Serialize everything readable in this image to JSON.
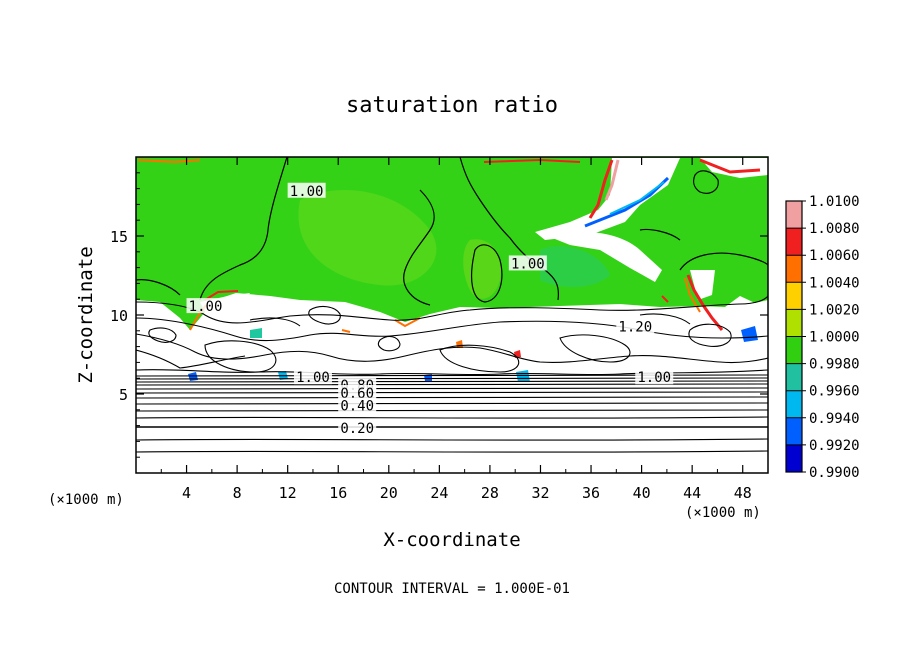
{
  "chart_data": {
    "type": "heatmap",
    "subtype": "filled contour plot",
    "title": "saturation ratio",
    "xlabel": "X-coordinate",
    "ylabel": "Z-coordinate",
    "x_unit_label": "(×1000 m)",
    "xlim": [
      0,
      50
    ],
    "ylim": [
      0,
      20
    ],
    "x_ticks": [
      4,
      8,
      12,
      16,
      20,
      24,
      28,
      32,
      36,
      40,
      44,
      48
    ],
    "y_ticks": [
      5,
      10,
      15
    ],
    "footer": "CONTOUR INTERVAL = 1.000E-01",
    "colorbar": {
      "labels": [
        "1.0100",
        "1.0080",
        "1.0060",
        "1.0040",
        "1.0020",
        "1.0000",
        "0.9980",
        "0.9960",
        "0.9940",
        "0.9920",
        "0.9900"
      ],
      "colors": [
        "#f0a0a0",
        "#f02020",
        "#ff7000",
        "#ffd000",
        "#b0e000",
        "#30d010",
        "#20c0a0",
        "#00b8f0",
        "#0060ff",
        "#0000d0",
        "#5a2090"
      ]
    },
    "contour_labels": [
      {
        "text": "1.00",
        "x": 13.5,
        "z": 17.8
      },
      {
        "text": "1.00",
        "x": 31.0,
        "z": 13.2
      },
      {
        "text": "1.00",
        "x": 5.5,
        "z": 10.5
      },
      {
        "text": "1.20",
        "x": 39.5,
        "z": 9.2
      },
      {
        "text": "1.00",
        "x": 41.0,
        "z": 6.0
      },
      {
        "text": "1.00",
        "x": 14.0,
        "z": 6.0
      },
      {
        "text": "0.80",
        "x": 17.5,
        "z": 5.5
      },
      {
        "text": "0.60",
        "x": 17.5,
        "z": 5.0
      },
      {
        "text": "0.40",
        "x": 17.5,
        "z": 4.2
      },
      {
        "text": "0.20",
        "x": 17.5,
        "z": 2.8
      }
    ]
  }
}
